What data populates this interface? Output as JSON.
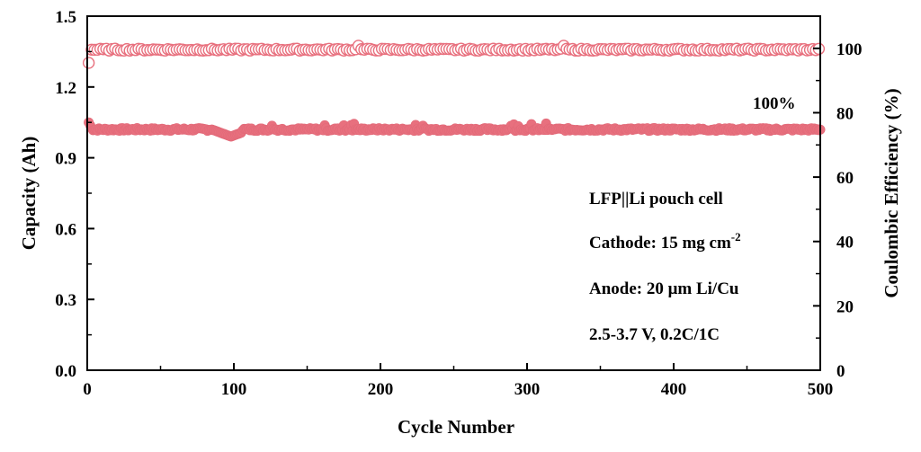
{
  "chart_data": {
    "type": "scatter",
    "title": "",
    "xlabel": "Cycle Number",
    "ylabel_left": "Capacity (Ah)",
    "ylabel_right": "Coulombic Efficiency (%)",
    "xlim": [
      0,
      500
    ],
    "ylim_left": [
      0,
      1.5
    ],
    "ylim_right": [
      0,
      110
    ],
    "x_ticks": [
      "0",
      "100",
      "200",
      "300",
      "400",
      "500"
    ],
    "y_left_ticks": [
      "0.0",
      "0.3",
      "0.6",
      "0.9",
      "1.2",
      "1.5"
    ],
    "y_right_ticks": [
      "0",
      "20",
      "40",
      "60",
      "80",
      "100"
    ],
    "grid": false,
    "series": [
      {
        "axis": "left",
        "marker": "filled-circle",
        "color": "#e8707e",
        "x_range": [
          1,
          500
        ],
        "start_value": 1.05,
        "typical_value": 1.02,
        "dip_near_cycle_100": 0.99
      },
      {
        "axis": "right",
        "marker": "open-circle",
        "color": "#e8707e",
        "x_range": [
          1,
          500
        ],
        "first_value": 95.5,
        "typical_value": 99.6
      }
    ],
    "annotations": {
      "retention": "100%",
      "cell": "LFP||Li pouch cell",
      "cathode_prefix": "Cathode: 15 mg cm",
      "cathode_sup": "-2",
      "anode": "Anode: 20 μm Li/Cu",
      "conditions": "2.5-3.7 V, 0.2C/1C"
    }
  }
}
